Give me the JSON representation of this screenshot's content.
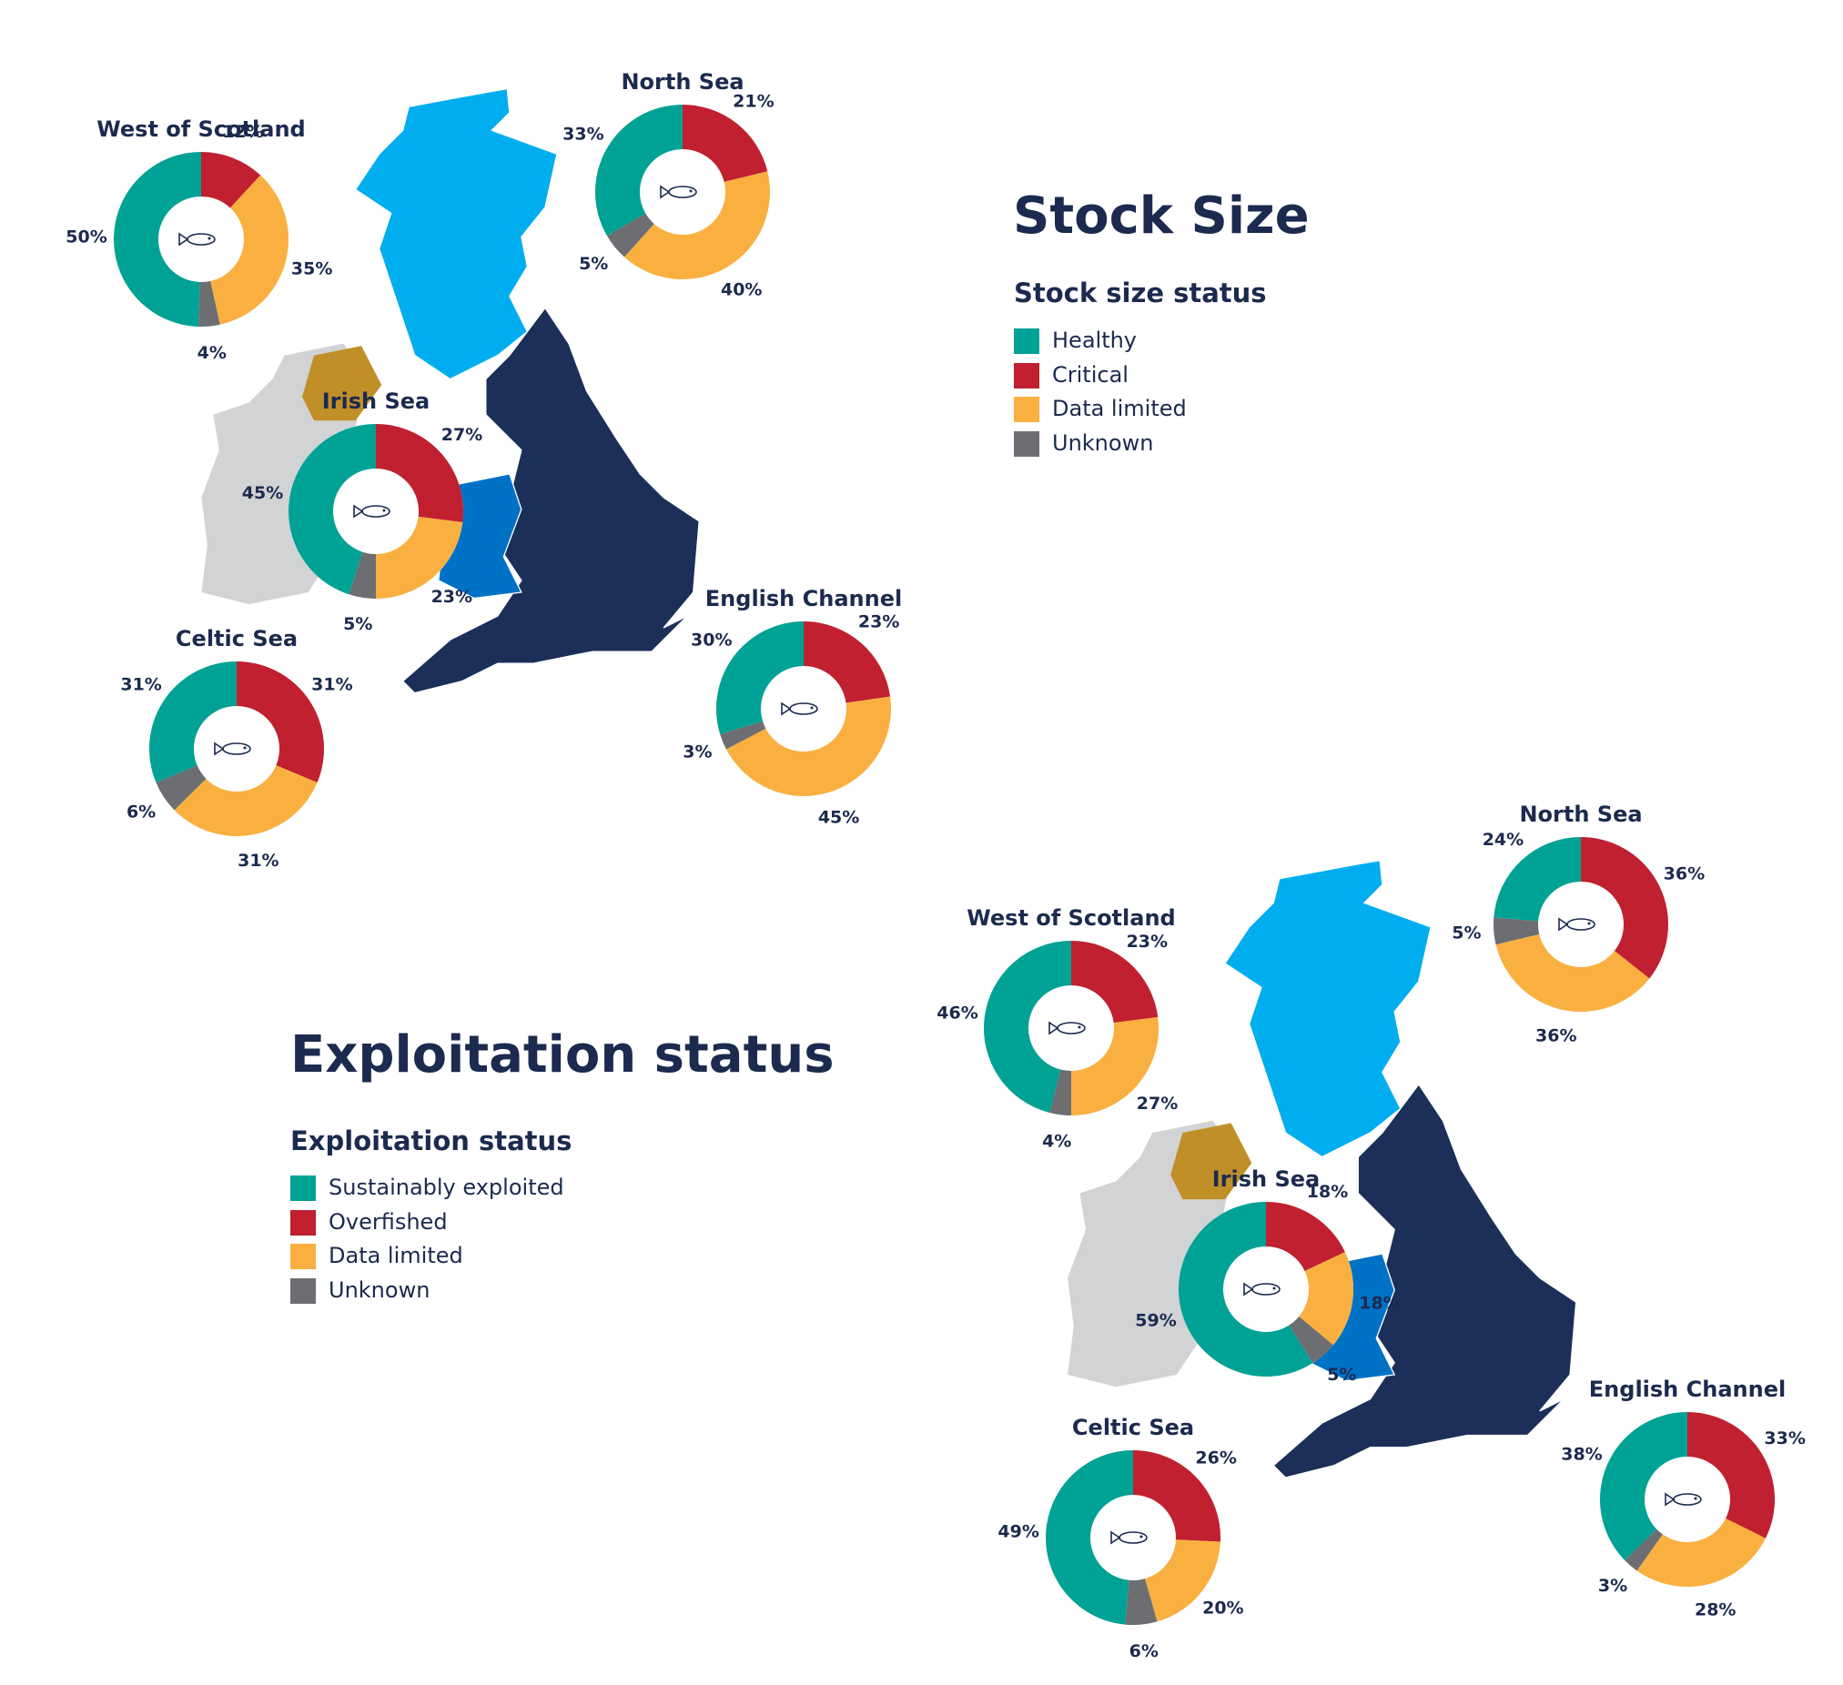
{
  "chart_data": [
    {
      "type": "donut-map",
      "title": "Stock Size",
      "legend_title": "Stock size status",
      "categories": [
        "Healthy",
        "Critical",
        "Data limited",
        "Unknown"
      ],
      "colors": [
        "#00a295",
        "#c0202f",
        "#f9b041",
        "#6d6e71"
      ],
      "regions": [
        {
          "name": "West of Scotland",
          "values": [
            50,
            12,
            35,
            4
          ],
          "value_labels": [
            "50%",
            "12%",
            "35%",
            "4%"
          ]
        },
        {
          "name": "North Sea",
          "values": [
            33,
            21,
            40,
            5
          ],
          "value_labels": [
            "33%",
            "21%",
            "40%",
            "5%"
          ]
        },
        {
          "name": "Irish Sea",
          "values": [
            45,
            27,
            23,
            5
          ],
          "value_labels": [
            "45%",
            "27%",
            "23%",
            "5%"
          ]
        },
        {
          "name": "Celtic Sea",
          "values": [
            31,
            31,
            31,
            6
          ],
          "value_labels": [
            "31%",
            "31%",
            "31%",
            "6%"
          ]
        },
        {
          "name": "English Channel",
          "values": [
            30,
            23,
            45,
            3
          ],
          "value_labels": [
            "30%",
            "23%",
            "45%",
            "3%"
          ]
        }
      ]
    },
    {
      "type": "donut-map",
      "title": "Exploitation status",
      "legend_title": "Exploitation status",
      "categories": [
        "Sustainably exploited",
        "Overfished",
        "Data limited",
        "Unknown"
      ],
      "colors": [
        "#00a295",
        "#c0202f",
        "#f9b041",
        "#6d6e71"
      ],
      "regions": [
        {
          "name": "West of Scotland",
          "values": [
            46,
            23,
            27,
            4
          ],
          "value_labels": [
            "46%",
            "23%",
            "27%",
            "4%"
          ]
        },
        {
          "name": "North Sea",
          "values": [
            24,
            36,
            36,
            5
          ],
          "value_labels": [
            "24%",
            "36%",
            "36%",
            "5%"
          ]
        },
        {
          "name": "Irish Sea",
          "values": [
            59,
            18,
            18,
            5
          ],
          "value_labels": [
            "59%",
            "18%",
            "18%",
            "5%"
          ]
        },
        {
          "name": "Celtic Sea",
          "values": [
            49,
            26,
            20,
            6
          ],
          "value_labels": [
            "49%",
            "26%",
            "20%",
            "6%"
          ]
        },
        {
          "name": "English Channel",
          "values": [
            38,
            33,
            28,
            3
          ],
          "value_labels": [
            "38%",
            "33%",
            "28%",
            "3%"
          ]
        }
      ]
    }
  ]
}
